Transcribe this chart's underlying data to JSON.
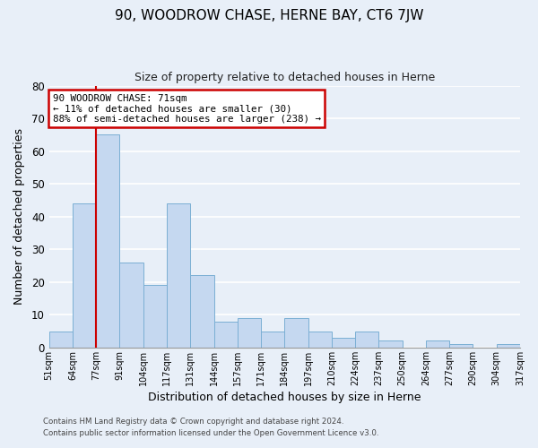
{
  "title": "90, WOODROW CHASE, HERNE BAY, CT6 7JW",
  "subtitle": "Size of property relative to detached houses in Herne",
  "xlabel": "Distribution of detached houses by size in Herne",
  "ylabel": "Number of detached properties",
  "footer_line1": "Contains HM Land Registry data © Crown copyright and database right 2024.",
  "footer_line2": "Contains public sector information licensed under the Open Government Licence v3.0.",
  "bins": [
    "51sqm",
    "64sqm",
    "77sqm",
    "91sqm",
    "104sqm",
    "117sqm",
    "131sqm",
    "144sqm",
    "157sqm",
    "171sqm",
    "184sqm",
    "197sqm",
    "210sqm",
    "224sqm",
    "237sqm",
    "250sqm",
    "264sqm",
    "277sqm",
    "290sqm",
    "304sqm",
    "317sqm"
  ],
  "values": [
    5,
    44,
    65,
    26,
    19,
    44,
    22,
    8,
    9,
    5,
    9,
    5,
    3,
    5,
    2,
    0,
    2,
    1,
    0,
    1
  ],
  "bar_color": "#c5d8f0",
  "bar_edge_color": "#7bafd4",
  "background_color": "#e8eff8",
  "grid_color": "#ffffff",
  "annotation_box_text": "90 WOODROW CHASE: 71sqm\n← 11% of detached houses are smaller (30)\n88% of semi-detached houses are larger (238) →",
  "annotation_box_color": "#ffffff",
  "annotation_box_edge_color": "#cc0000",
  "ylim": [
    0,
    80
  ],
  "yticks": [
    0,
    10,
    20,
    30,
    40,
    50,
    60,
    70,
    80
  ]
}
